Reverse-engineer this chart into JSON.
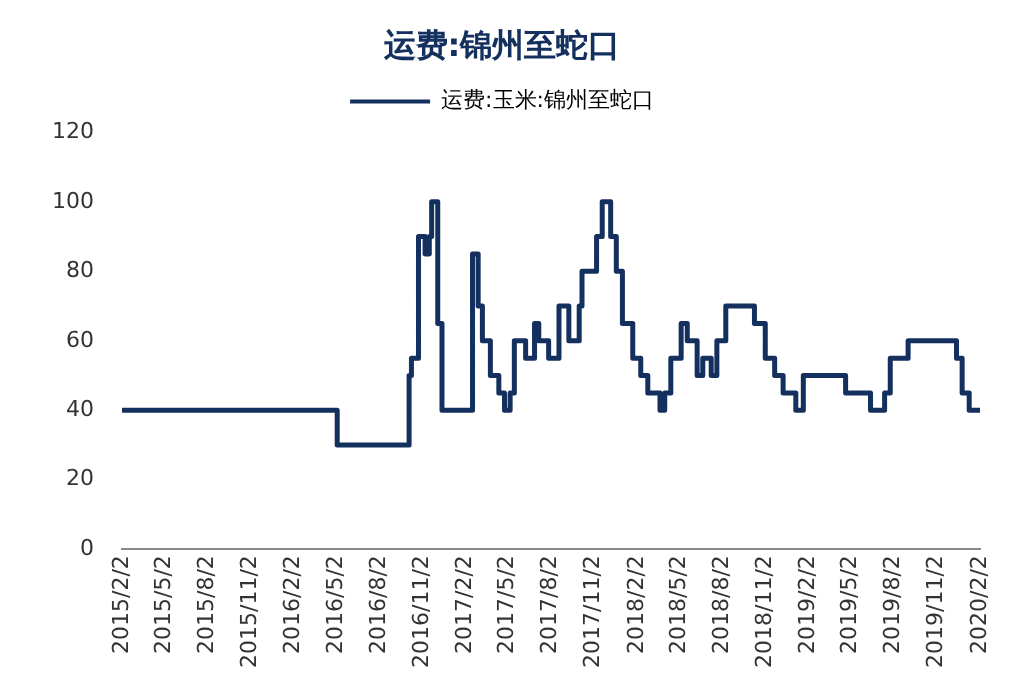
{
  "chart_data": {
    "type": "step",
    "title": "运费:锦州至蛇口",
    "legend": "top",
    "grid": false,
    "marker": "none",
    "xlim": [
      "2015-02-02",
      "2020-02-02"
    ],
    "xticks": [
      {
        "value": "2015-02-02",
        "label": "2015/2/2"
      },
      {
        "value": "2015-05-02",
        "label": "2015/5/2"
      },
      {
        "value": "2015-08-02",
        "label": "2015/8/2"
      },
      {
        "value": "2015-11-02",
        "label": "2015/11/2"
      },
      {
        "value": "2016-02-02",
        "label": "2016/2/2"
      },
      {
        "value": "2016-05-02",
        "label": "2016/5/2"
      },
      {
        "value": "2016-08-02",
        "label": "2016/8/2"
      },
      {
        "value": "2016-11-02",
        "label": "2016/11/2"
      },
      {
        "value": "2017-02-02",
        "label": "2017/2/2"
      },
      {
        "value": "2017-05-02",
        "label": "2017/5/2"
      },
      {
        "value": "2017-08-02",
        "label": "2017/8/2"
      },
      {
        "value": "2017-11-02",
        "label": "2017/11/2"
      },
      {
        "value": "2018-02-02",
        "label": "2018/2/2"
      },
      {
        "value": "2018-05-02",
        "label": "2018/5/2"
      },
      {
        "value": "2018-08-02",
        "label": "2018/8/2"
      },
      {
        "value": "2018-11-02",
        "label": "2018/11/2"
      },
      {
        "value": "2019-02-02",
        "label": "2019/2/2"
      },
      {
        "value": "2019-05-02",
        "label": "2019/5/2"
      },
      {
        "value": "2019-08-02",
        "label": "2019/8/2"
      },
      {
        "value": "2019-11-02",
        "label": "2019/11/2"
      },
      {
        "value": "2020-02-02",
        "label": "2020/2/2"
      }
    ],
    "ylim": [
      0,
      120
    ],
    "yticks": [
      0,
      20,
      40,
      60,
      80,
      100,
      120
    ],
    "x": [
      "2015-02-02",
      "2016-05-05",
      "2016-05-20",
      "2016-10-05",
      "2016-10-10",
      "2016-10-25",
      "2016-11-08",
      "2016-11-17",
      "2016-11-22",
      "2016-12-05",
      "2016-12-14",
      "2016-12-24",
      "2017-02-17",
      "2017-03-01",
      "2017-03-10",
      "2017-03-27",
      "2017-04-14",
      "2017-04-26",
      "2017-05-08",
      "2017-05-17",
      "2017-06-10",
      "2017-06-29",
      "2017-07-08",
      "2017-07-29",
      "2017-08-20",
      "2017-09-10",
      "2017-10-02",
      "2017-10-08",
      "2017-11-08",
      "2017-11-20",
      "2017-12-08",
      "2017-12-20",
      "2018-01-02",
      "2018-01-24",
      "2018-02-10",
      "2018-02-25",
      "2018-03-23",
      "2018-04-02",
      "2018-04-15",
      "2018-05-07",
      "2018-05-20",
      "2018-06-10",
      "2018-06-22",
      "2018-07-10",
      "2018-07-22",
      "2018-08-10",
      "2018-10-10",
      "2018-11-02",
      "2018-11-22",
      "2018-12-10",
      "2019-01-06",
      "2019-01-22",
      "2019-04-22",
      "2019-06-14",
      "2019-07-14",
      "2019-07-26",
      "2019-09-02",
      "2019-12-14",
      "2019-12-26",
      "2020-01-10",
      "2020-02-02"
    ],
    "series": [
      {
        "name": "运费:玉米:锦州至蛇口",
        "color": "#14305e",
        "values": [
          40,
          40,
          30,
          30,
          50,
          55,
          90,
          85,
          90,
          100,
          65,
          40,
          40,
          85,
          70,
          60,
          50,
          45,
          40,
          45,
          60,
          55,
          65,
          60,
          55,
          70,
          60,
          70,
          80,
          90,
          100,
          90,
          80,
          65,
          55,
          50,
          45,
          40,
          45,
          55,
          65,
          60,
          50,
          55,
          50,
          60,
          70,
          65,
          55,
          50,
          45,
          40,
          50,
          45,
          40,
          45,
          55,
          60,
          55,
          45,
          40
        ]
      }
    ]
  }
}
